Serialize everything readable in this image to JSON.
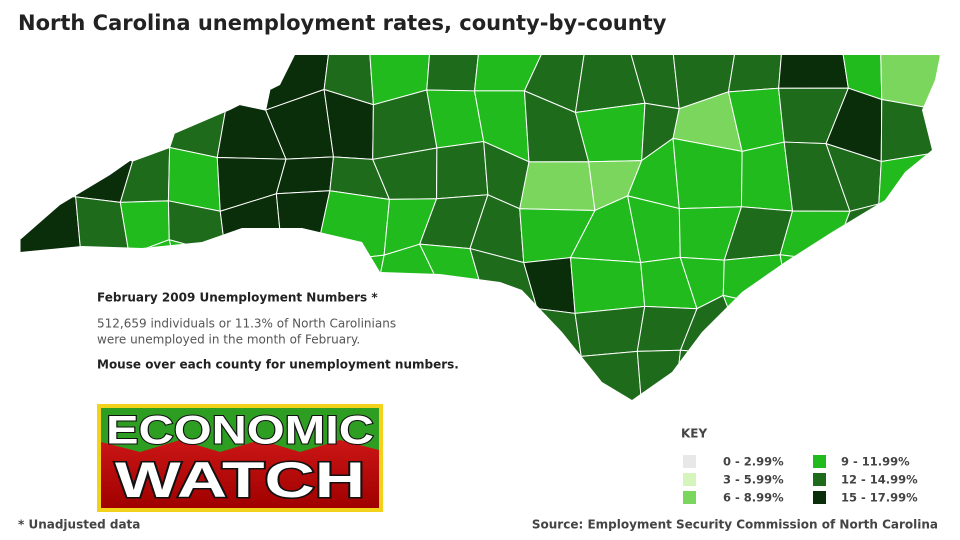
{
  "header": {
    "title": "North Carolina unemployment rates, county-by-county"
  },
  "info": {
    "heading": "February 2009 Unemployment Numbers *",
    "lines": [
      "512,659 individuals or 11.3% of North Carolinians",
      "were unemployed in the month of February."
    ],
    "instruction": "Mouse over each county for unemployment numbers."
  },
  "logo": {
    "line1": "ECONOMIC",
    "line2": "WATCH"
  },
  "key": {
    "title": "KEY",
    "items": [
      {
        "label": "0 - 2.99%",
        "color": "#e8e8e8"
      },
      {
        "label": "3 - 5.99%",
        "color": "#d6f5bd"
      },
      {
        "label": "6 - 8.99%",
        "color": "#7ad65c"
      },
      {
        "label": "9 - 11.99%",
        "color": "#22bb1e"
      },
      {
        "label": "12 - 14.99%",
        "color": "#1f6b1c"
      },
      {
        "label": "15 - 17.99%",
        "color": "#0a2d0a"
      }
    ]
  },
  "footer": {
    "note": "* Unadjusted data",
    "source": "Source: Employment Security Commission of North Carolina"
  }
}
